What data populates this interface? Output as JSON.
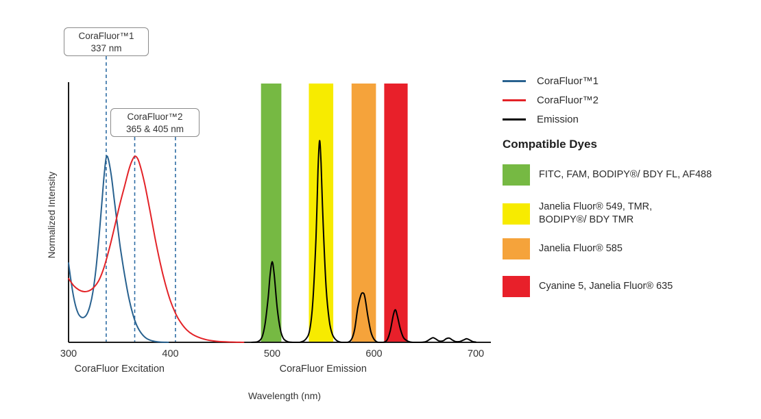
{
  "compatible_dyes": {
    "heading": "Compatible Dyes",
    "items": [
      {
        "label": "FITC, FAM, BODIPY®/ BDY FL, AF488",
        "color": "#76B943"
      },
      {
        "label": "Janelia Fluor® 549, TMR,\nBODIPY®/ BDY TMR",
        "color": "#F7EB00"
      },
      {
        "label": "Janelia Fluor® 585",
        "color": "#F5A33B"
      },
      {
        "label": "Cyanine 5, Janelia Fluor® 635",
        "color": "#E8202A"
      }
    ]
  },
  "chart_data": {
    "type": "line",
    "title": "",
    "xlabel": "Wavelength (nm)",
    "ylabel": "Normalized Intensity",
    "xlim": [
      300,
      715
    ],
    "ylim": [
      0,
      1.0
    ],
    "grid": false,
    "legend_position": "top-right",
    "x_ticks": [
      300,
      400,
      500,
      600,
      700
    ],
    "x_group_labels": [
      {
        "text": "CoraFluor Excitation",
        "center_nm": 350
      },
      {
        "text": "CoraFluor Emission",
        "center_nm": 550
      }
    ],
    "marker_line_color": "#2E6DA4",
    "peak_markers": [
      {
        "label": "CoraFluor™1",
        "sublabel": "337 nm",
        "lines_nm": [
          337
        ]
      },
      {
        "label": "CoraFluor™2",
        "sublabel": "365 & 405 nm",
        "lines_nm": [
          365,
          405
        ]
      }
    ],
    "dye_bands": [
      {
        "name": "green",
        "dye": "FITC, FAM, BODIPY®/ BDY FL, AF488",
        "from_nm": 489,
        "to_nm": 509,
        "color": "#76B943"
      },
      {
        "name": "yellow",
        "dye": "Janelia Fluor® 549, TMR, BODIPY®/ BDY TMR",
        "from_nm": 536,
        "to_nm": 560,
        "color": "#F7EB00"
      },
      {
        "name": "orange",
        "dye": "Janelia Fluor® 585",
        "from_nm": 578,
        "to_nm": 602,
        "color": "#F5A33B"
      },
      {
        "name": "red",
        "dye": "Cyanine 5, Janelia Fluor® 635",
        "from_nm": 610,
        "to_nm": 633,
        "color": "#E8202A"
      }
    ],
    "series": [
      {
        "name": "CoraFluor™1",
        "id": "corafluor-1",
        "color": "#28618F",
        "points": [
          [
            300,
            0.305
          ],
          [
            303,
            0.22
          ],
          [
            306,
            0.155
          ],
          [
            309,
            0.115
          ],
          [
            312,
            0.098
          ],
          [
            315,
            0.096
          ],
          [
            318,
            0.108
          ],
          [
            321,
            0.14
          ],
          [
            324,
            0.195
          ],
          [
            327,
            0.285
          ],
          [
            330,
            0.41
          ],
          [
            333,
            0.55
          ],
          [
            335,
            0.645
          ],
          [
            337,
            0.71
          ],
          [
            339,
            0.705
          ],
          [
            342,
            0.64
          ],
          [
            345,
            0.545
          ],
          [
            348,
            0.45
          ],
          [
            351,
            0.36
          ],
          [
            355,
            0.26
          ],
          [
            359,
            0.175
          ],
          [
            363,
            0.11
          ],
          [
            367,
            0.065
          ],
          [
            372,
            0.032
          ],
          [
            377,
            0.014
          ],
          [
            383,
            0.005
          ],
          [
            390,
            0.001
          ],
          [
            398,
            0
          ]
        ]
      },
      {
        "name": "CoraFluor™2",
        "id": "corafluor-2",
        "color": "#E32227",
        "points": [
          [
            300,
            0.245
          ],
          [
            305,
            0.218
          ],
          [
            310,
            0.202
          ],
          [
            315,
            0.195
          ],
          [
            320,
            0.198
          ],
          [
            325,
            0.212
          ],
          [
            330,
            0.24
          ],
          [
            335,
            0.29
          ],
          [
            340,
            0.36
          ],
          [
            345,
            0.44
          ],
          [
            350,
            0.525
          ],
          [
            355,
            0.6
          ],
          [
            359,
            0.66
          ],
          [
            362,
            0.695
          ],
          [
            365,
            0.715
          ],
          [
            368,
            0.705
          ],
          [
            371,
            0.67
          ],
          [
            375,
            0.605
          ],
          [
            380,
            0.505
          ],
          [
            385,
            0.4
          ],
          [
            390,
            0.305
          ],
          [
            395,
            0.225
          ],
          [
            400,
            0.16
          ],
          [
            405,
            0.112
          ],
          [
            410,
            0.077
          ],
          [
            416,
            0.048
          ],
          [
            422,
            0.03
          ],
          [
            430,
            0.016
          ],
          [
            438,
            0.008
          ],
          [
            448,
            0.003
          ],
          [
            460,
            0.001
          ],
          [
            472,
            0
          ]
        ]
      },
      {
        "name": "Emission",
        "id": "emission",
        "color": "#000000",
        "points": [
          [
            480,
            0
          ],
          [
            486,
            0.003
          ],
          [
            490,
            0.02
          ],
          [
            493,
            0.07
          ],
          [
            496,
            0.17
          ],
          [
            498,
            0.26
          ],
          [
            500,
            0.31
          ],
          [
            502,
            0.26
          ],
          [
            505,
            0.13
          ],
          [
            508,
            0.05
          ],
          [
            511,
            0.015
          ],
          [
            515,
            0.003
          ],
          [
            520,
            0
          ],
          [
            527,
            0
          ],
          [
            533,
            0.012
          ],
          [
            537,
            0.05
          ],
          [
            540,
            0.16
          ],
          [
            543,
            0.4
          ],
          [
            545,
            0.66
          ],
          [
            546.5,
            0.775
          ],
          [
            548,
            0.69
          ],
          [
            550,
            0.46
          ],
          [
            553,
            0.21
          ],
          [
            556,
            0.085
          ],
          [
            559,
            0.032
          ],
          [
            563,
            0.008
          ],
          [
            568,
            0
          ],
          [
            574,
            0
          ],
          [
            578,
            0.012
          ],
          [
            581,
            0.05
          ],
          [
            584,
            0.13
          ],
          [
            587,
            0.18
          ],
          [
            589,
            0.19
          ],
          [
            591,
            0.175
          ],
          [
            594,
            0.1
          ],
          [
            597,
            0.04
          ],
          [
            600,
            0.012
          ],
          [
            604,
            0
          ],
          [
            609,
            0
          ],
          [
            613,
            0.01
          ],
          [
            616,
            0.045
          ],
          [
            619,
            0.105
          ],
          [
            621,
            0.125
          ],
          [
            623,
            0.1
          ],
          [
            626,
            0.05
          ],
          [
            629,
            0.018
          ],
          [
            633,
            0.005
          ],
          [
            638,
            0
          ],
          [
            646,
            0
          ],
          [
            651,
            0.003
          ],
          [
            655,
            0.012
          ],
          [
            658,
            0.018
          ],
          [
            661,
            0.012
          ],
          [
            664,
            0.005
          ],
          [
            668,
            0.006
          ],
          [
            671,
            0.014
          ],
          [
            674,
            0.016
          ],
          [
            677,
            0.009
          ],
          [
            680,
            0.003
          ],
          [
            684,
            0.003
          ],
          [
            688,
            0.009
          ],
          [
            691,
            0.014
          ],
          [
            694,
            0.009
          ],
          [
            697,
            0.003
          ],
          [
            700,
            0.001
          ]
        ]
      }
    ]
  }
}
